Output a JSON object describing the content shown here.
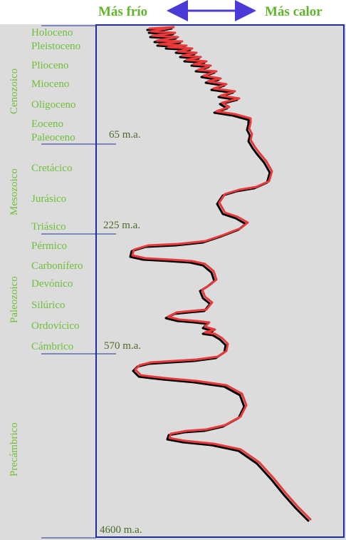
{
  "header": {
    "cold_label": "Más frío",
    "warm_label": "Más calor"
  },
  "eras": {
    "cenozoic": "Cenozoico",
    "mesozoic": "Mesozoico",
    "paleozoic": "Paleozoico",
    "precambrian": "Precámbrico"
  },
  "periods": [
    "Holoceno",
    "Pleistoceno",
    "Plioceno",
    "Mioceno",
    "Oligoceno",
    "Eoceno",
    "Paleoceno",
    "Cretácico",
    "Jurásico",
    "Triásico",
    "Pérmico",
    "Carbonífero",
    "Devónico",
    "Silúrico",
    "Ordovícico",
    "Cámbrico"
  ],
  "boundaries": {
    "b65": "65 m.a.",
    "b225": "225 m.a.",
    "b570": "570 m.a.",
    "b4600": "4600  m.a."
  },
  "colors": {
    "background": "#dcdcdc",
    "frame": "#1f2f9a",
    "curve_main": "#e8393b",
    "curve_shadow": "#000000",
    "arrow": "#4a3ad8",
    "text_green": "#6fbf3a"
  }
}
